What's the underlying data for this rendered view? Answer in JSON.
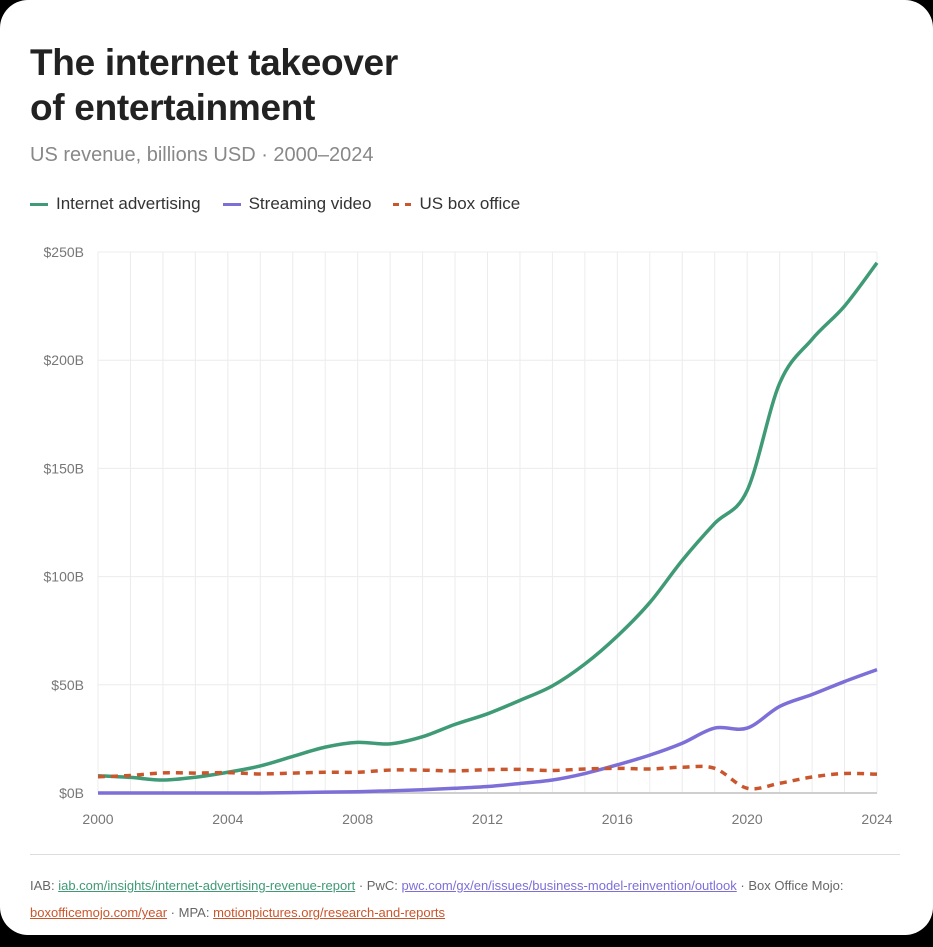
{
  "title_line1": "The internet takeover",
  "title_line2": "of entertainment",
  "subtitle": "US revenue, billions USD · 2000–2024",
  "chart_data": {
    "type": "line",
    "title": "The internet takeover of entertainment",
    "subtitle": "US revenue, billions USD · 2000–2024",
    "x": [
      2000,
      2001,
      2002,
      2003,
      2004,
      2005,
      2006,
      2007,
      2008,
      2009,
      2010,
      2011,
      2012,
      2013,
      2014,
      2015,
      2016,
      2017,
      2018,
      2019,
      2020,
      2021,
      2022,
      2023,
      2024
    ],
    "xticks": [
      "2000",
      "2004",
      "2008",
      "2012",
      "2016",
      "2020",
      "2024"
    ],
    "yticks": [
      "$0B",
      "$50B",
      "$100B",
      "$150B",
      "$200B",
      "$250B"
    ],
    "ylim": [
      0,
      250
    ],
    "grid": true,
    "legend": "top-left",
    "series": [
      {
        "name": "Internet advertising",
        "color": "#3f9a76",
        "style": "solid",
        "values": [
          8,
          7.2,
          6,
          7.3,
          9.6,
          12.5,
          16.9,
          21.2,
          23.4,
          22.7,
          26,
          31.7,
          36.6,
          42.8,
          49.5,
          59.6,
          72.5,
          88,
          107.5,
          124.6,
          139.8,
          189.3,
          209.7,
          225,
          245
        ]
      },
      {
        "name": "Streaming video",
        "color": "#7d6fd8",
        "style": "solid",
        "values": [
          0,
          0,
          0,
          0,
          0,
          0,
          0.2,
          0.4,
          0.6,
          1,
          1.5,
          2.2,
          3,
          4.4,
          6,
          9,
          13,
          17.5,
          23,
          30,
          30,
          40,
          45.5,
          51.5,
          57
        ]
      },
      {
        "name": "US box office",
        "color": "#c9562c",
        "style": "dashed",
        "values": [
          7.5,
          8.1,
          9.3,
          9.2,
          9.4,
          8.8,
          9.2,
          9.6,
          9.6,
          10.6,
          10.6,
          10.2,
          10.8,
          10.9,
          10.4,
          11.1,
          11.4,
          11.1,
          11.9,
          11.4,
          2.2,
          4.5,
          7.4,
          9,
          8.7
        ]
      }
    ]
  },
  "sources": {
    "iab_label": "IAB:",
    "iab_link": "iab.com/insights/internet-advertising-revenue-report",
    "pwc_label": "PwC:",
    "pwc_link": "pwc.com/gx/en/issues/business-model-reinvention/outlook",
    "bom_label": "Box Office Mojo:",
    "bom_link": "boxofficemojo.com/year",
    "mpa_label": "MPA:",
    "mpa_link": "motionpictures.org/research-and-reports",
    "sep": "·"
  }
}
